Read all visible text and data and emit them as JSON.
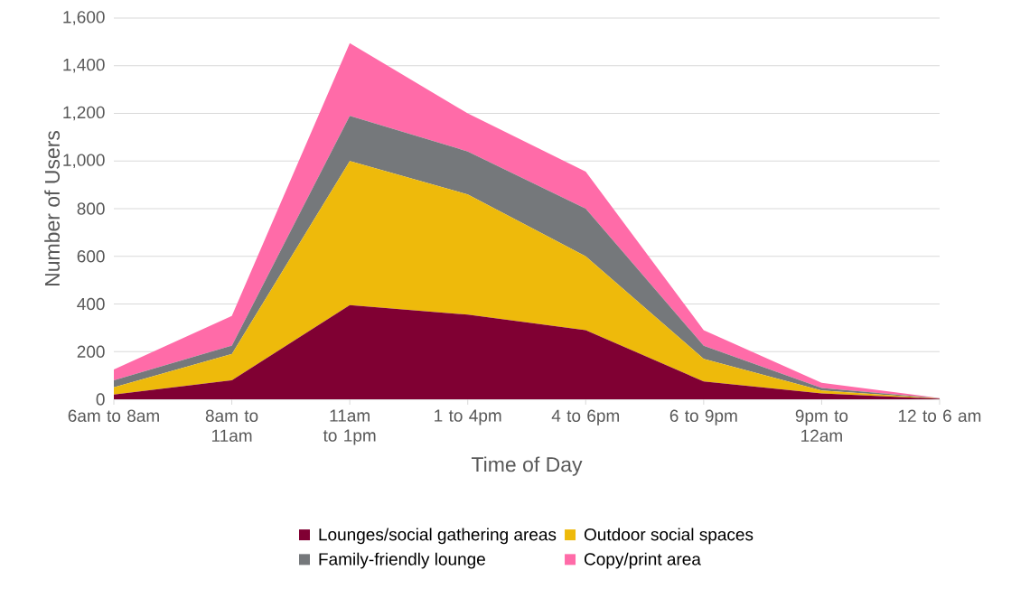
{
  "chart_data": {
    "type": "area",
    "stacked": true,
    "xlabel": "Time of Day",
    "ylabel": "Number of Users",
    "categories": [
      "6am to 8am",
      "8am to 11am",
      "11am to 1pm",
      "1 to 4pm",
      "4 to 6pm",
      "6 to 9pm",
      "9pm to 12am",
      "12 to 6 am"
    ],
    "series": [
      {
        "name": "Lounges/social gathering areas",
        "color": "#800033",
        "values": [
          20,
          80,
          395,
          355,
          290,
          75,
          25,
          2
        ]
      },
      {
        "name": "Outdoor social spaces",
        "color": "#eeba0b",
        "values": [
          30,
          110,
          605,
          505,
          310,
          95,
          12,
          1
        ]
      },
      {
        "name": "Family-friendly lounge",
        "color": "#75787b",
        "values": [
          30,
          35,
          190,
          180,
          200,
          55,
          10,
          1
        ]
      },
      {
        "name": "Copy/print area",
        "color": "#ff6ba8",
        "values": [
          45,
          125,
          305,
          160,
          155,
          65,
          22,
          1
        ]
      }
    ],
    "ylim": [
      0,
      1600
    ],
    "yticks": [
      0,
      200,
      400,
      600,
      800,
      {
        "value": 1000,
        "label": "1,000"
      },
      {
        "value": 1200,
        "label": "1,200"
      },
      {
        "value": 1400,
        "label": "1,400"
      },
      {
        "value": 1600,
        "label": "1,600"
      }
    ],
    "grid": "y",
    "legend": "bottom"
  }
}
